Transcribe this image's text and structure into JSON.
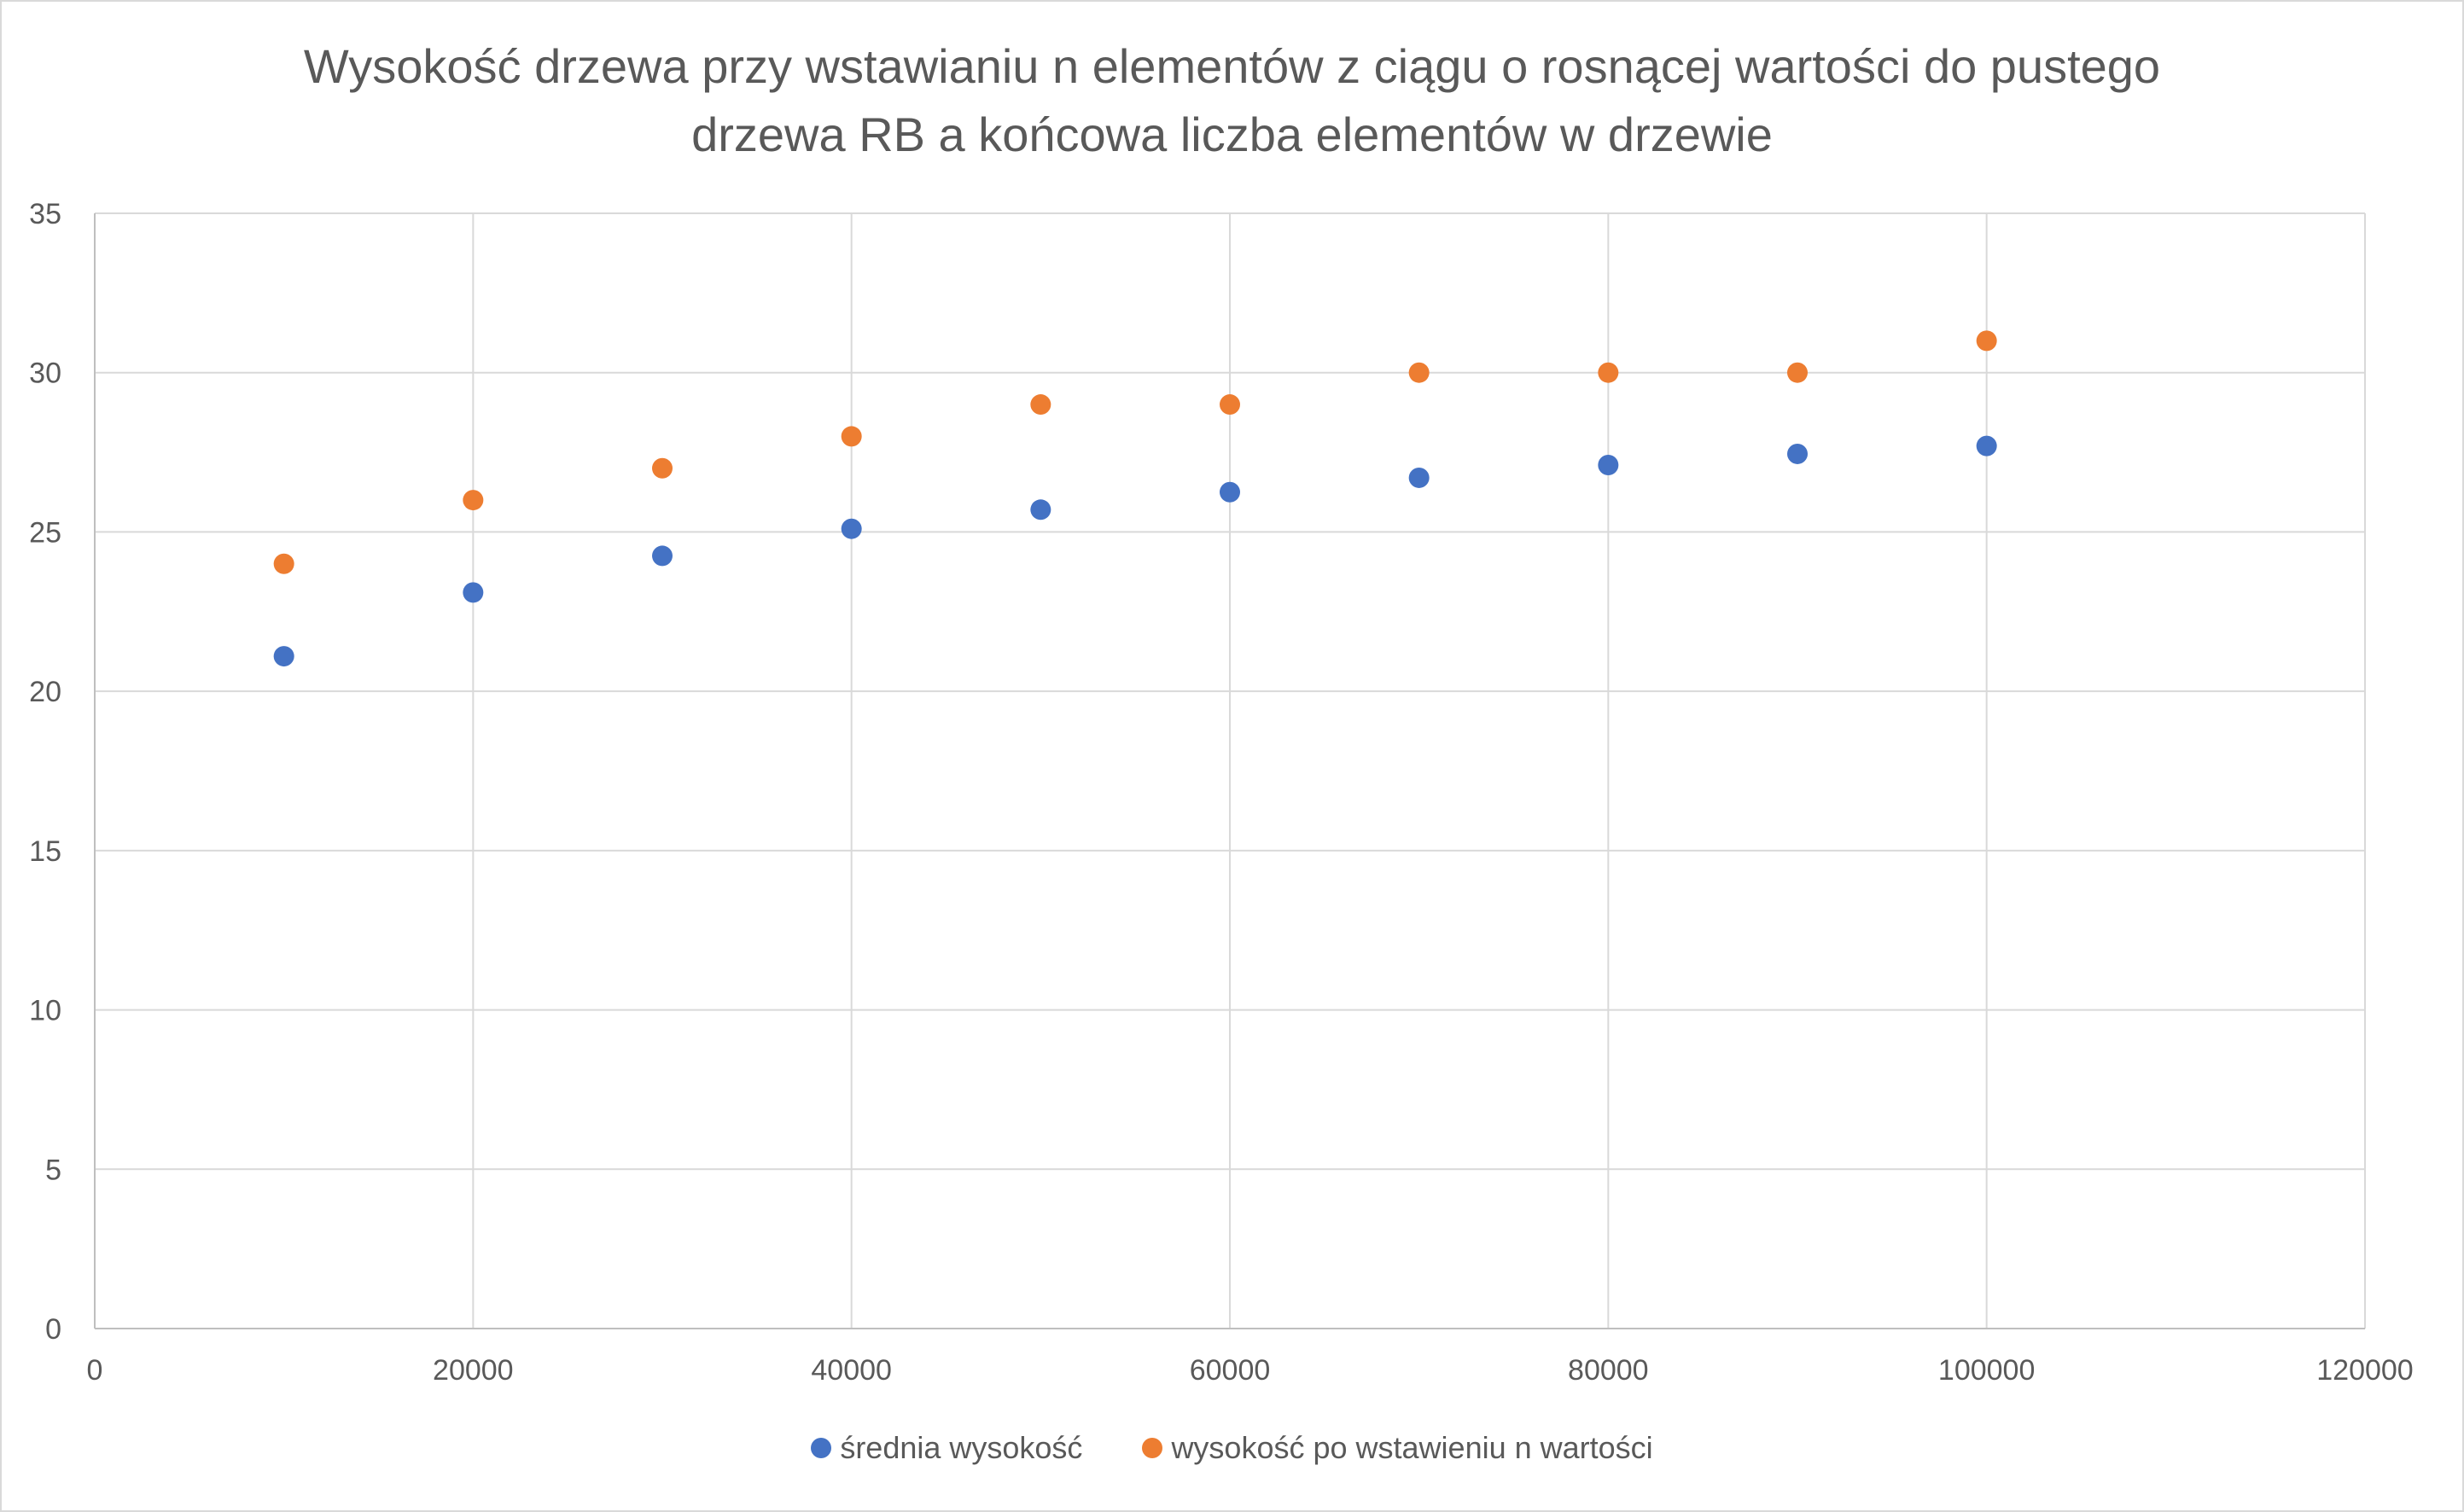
{
  "chart_data": {
    "type": "scatter",
    "title_lines": [
      "Wysokość drzewa przy wstawianiu n elementów z ciągu o rosnącej wartości do pustego",
      "drzewa RB a końcowa liczba elementów w drzewie"
    ],
    "xlabel": "",
    "ylabel": "",
    "xlim": [
      0,
      120000
    ],
    "ylim": [
      0,
      35
    ],
    "x_ticks": [
      0,
      20000,
      40000,
      60000,
      80000,
      100000,
      120000
    ],
    "y_ticks": [
      0,
      5,
      10,
      15,
      20,
      25,
      30,
      35
    ],
    "grid": true,
    "legend_position": "bottom",
    "x": [
      10000,
      20000,
      30000,
      40000,
      50000,
      60000,
      70000,
      80000,
      90000,
      100000
    ],
    "series": [
      {
        "name": "średnia wysokość",
        "color": "#4472c4",
        "values": [
          21.1,
          23.1,
          24.25,
          25.1,
          25.7,
          26.25,
          26.7,
          27.1,
          27.45,
          27.7
        ]
      },
      {
        "name": "wysokość po wstawieniu n wartości",
        "color": "#ed7d31",
        "values": [
          24,
          26,
          27,
          28,
          29,
          29,
          30,
          30,
          30,
          31
        ]
      }
    ]
  }
}
